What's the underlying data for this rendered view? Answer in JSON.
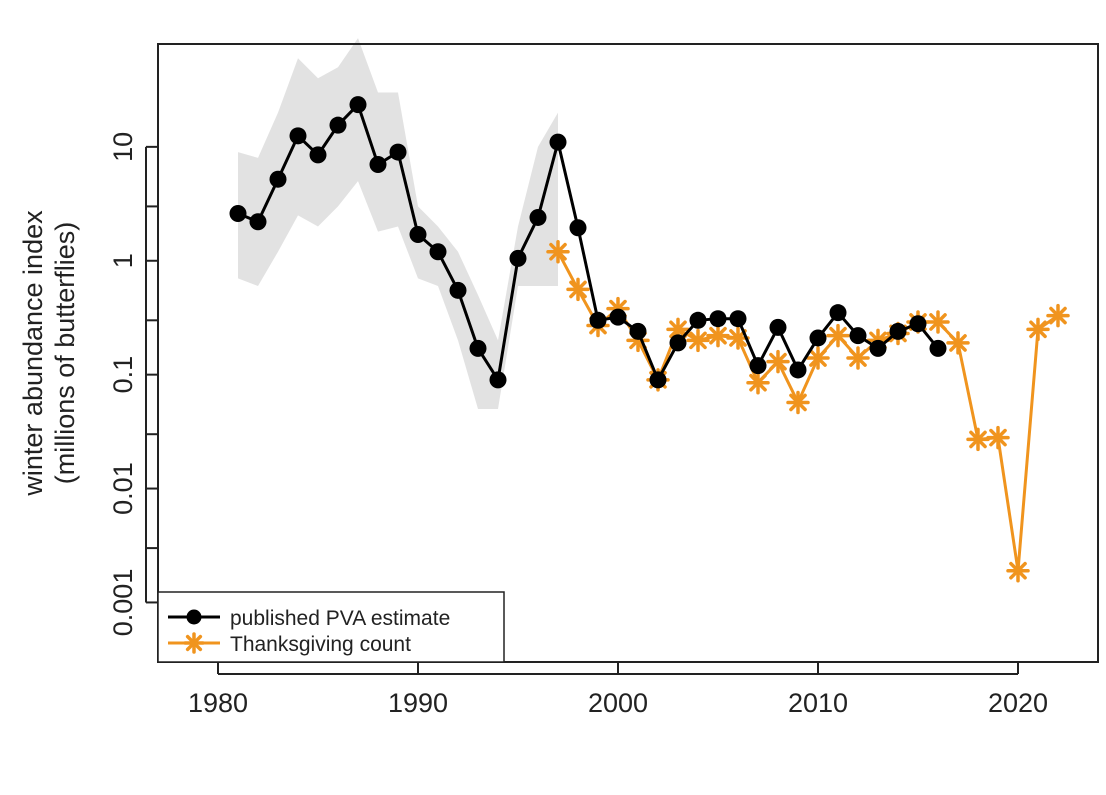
{
  "chart_data": {
    "type": "line",
    "yscale": "log",
    "xlabel": "",
    "ylabel": "winter abundance index",
    "ylabel_sub": "(millions of butterflies)",
    "xlim": [
      1977,
      2024
    ],
    "ylim": [
      0.0003,
      80
    ],
    "x_ticks": [
      1980,
      1990,
      2000,
      2010,
      2020
    ],
    "x_tick_labels": [
      "1980",
      "1990",
      "2000",
      "2010",
      "2020"
    ],
    "y_ticks": [
      0.001,
      0.003,
      0.01,
      0.03,
      0.1,
      0.3,
      1,
      3,
      10
    ],
    "y_tick_labels": [
      "0.001",
      "",
      "0.01",
      "",
      "0.1",
      "",
      "1",
      "",
      "10"
    ],
    "legend_position": "bottom-left",
    "colors": {
      "pva": "#000000",
      "thanksgiving": "#f0941e",
      "band": "#e2e2e2"
    },
    "confidence_band": {
      "x": [
        1981,
        1982,
        1983,
        1984,
        1985,
        1986,
        1987,
        1988,
        1989,
        1990,
        1991,
        1992,
        1993,
        1994,
        1995,
        1996,
        1997
      ],
      "lower": [
        0.7,
        0.6,
        1.2,
        2.5,
        2.0,
        3.0,
        5.0,
        1.8,
        2.0,
        0.7,
        0.6,
        0.2,
        0.05,
        0.05,
        0.6,
        0.6,
        0.6
      ],
      "upper": [
        9,
        8,
        20,
        60,
        40,
        50,
        90,
        30,
        30,
        3,
        2,
        1.2,
        0.5,
        0.2,
        2,
        10,
        20
      ]
    },
    "series": [
      {
        "name": "published PVA estimate",
        "color": "#000000",
        "marker": "circle",
        "x": [
          1981,
          1982,
          1983,
          1984,
          1985,
          1986,
          1987,
          1988,
          1989,
          1990,
          1991,
          1992,
          1993,
          1994,
          1995,
          1996,
          1997,
          1998,
          1999,
          2000,
          2001,
          2002,
          2003,
          2004,
          2005,
          2006,
          2007,
          2008,
          2009,
          2010,
          2011,
          2012,
          2013,
          2014,
          2015,
          2016
        ],
        "values": [
          2.6,
          2.2,
          5.2,
          12.5,
          8.5,
          15.5,
          23.5,
          7.0,
          9.0,
          1.7,
          1.2,
          0.55,
          0.17,
          0.09,
          1.05,
          2.4,
          11.0,
          1.95,
          0.3,
          0.32,
          0.24,
          0.09,
          0.19,
          0.3,
          0.31,
          0.31,
          0.12,
          0.26,
          0.11,
          0.21,
          0.35,
          0.22,
          0.17,
          0.24,
          0.28,
          0.17
        ]
      },
      {
        "name": "Thanksgiving count",
        "color": "#f0941e",
        "marker": "asterisk",
        "x": [
          1997,
          1998,
          1999,
          2000,
          2001,
          2002,
          2003,
          2004,
          2005,
          2006,
          2007,
          2008,
          2009,
          2010,
          2011,
          2012,
          2013,
          2014,
          2015,
          2016,
          2017,
          2018,
          2019,
          2020,
          2021,
          2022
        ],
        "values": [
          1.2,
          0.56,
          0.27,
          0.38,
          0.2,
          0.09,
          0.25,
          0.2,
          0.22,
          0.21,
          0.085,
          0.13,
          0.057,
          0.14,
          0.22,
          0.14,
          0.2,
          0.23,
          0.29,
          0.29,
          0.19,
          0.027,
          0.028,
          0.0019,
          0.25,
          0.33
        ]
      }
    ]
  }
}
